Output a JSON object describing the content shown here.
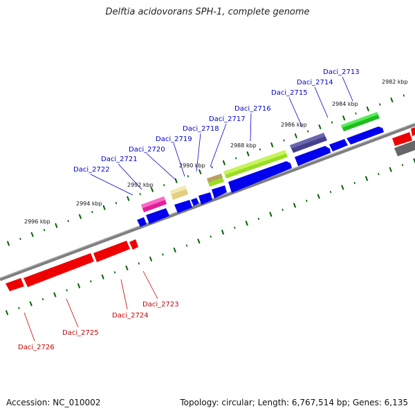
{
  "title": "Delftia acidovorans SPH-1, complete genome",
  "footer": {
    "accession": "Accession: NC_010002",
    "summary": "Topology: circular; Length: 6,767,514 bp; Genes: 6,135"
  },
  "colors": {
    "backbone": "#7f7f7f",
    "forward_label": "#0000c8",
    "reverse_label": "#c80000",
    "tick": "#006000",
    "forward_gene": "#0000ee",
    "reverse_gene": "#ee0000"
  },
  "scale_ticks": [
    "2982 kbp",
    "2984 kbp",
    "2986 kbp",
    "2988 kbp",
    "2990 kbp",
    "2992 kbp",
    "2994 kbp",
    "2996 kbp"
  ],
  "forward_gene_labels": [
    "Daci_2713",
    "Daci_2714",
    "Daci_2715",
    "Daci_2716",
    "Daci_2717",
    "Daci_2718",
    "Daci_2719",
    "Daci_2720",
    "Daci_2721",
    "Daci_2722"
  ],
  "reverse_gene_labels": [
    "Daci_2723",
    "Daci_2724",
    "Daci_2725",
    "Daci_2726"
  ]
}
